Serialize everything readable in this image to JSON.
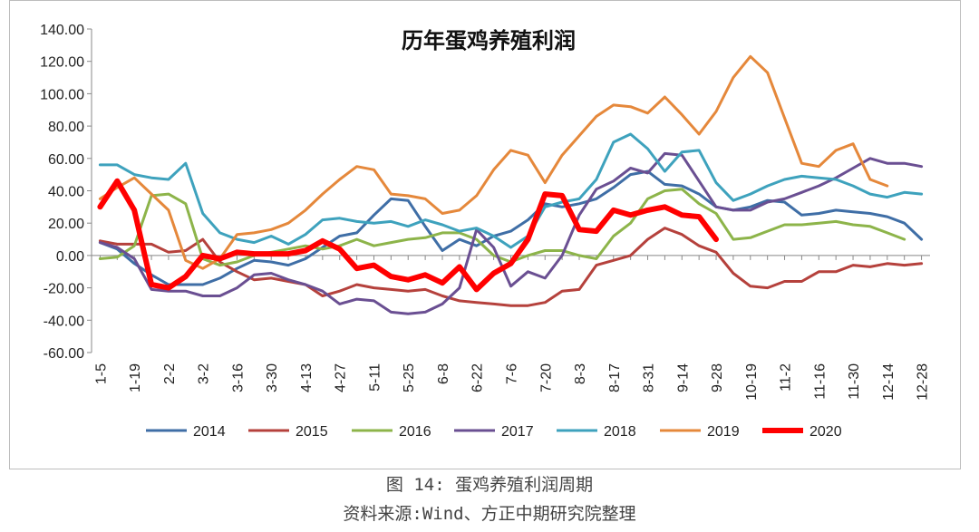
{
  "chart_data": {
    "type": "line",
    "title": "历年蛋鸡养殖利润",
    "ylim": [
      -60,
      140
    ],
    "y_ticks": [
      "140.00",
      "120.00",
      "100.00",
      "80.00",
      "60.00",
      "40.00",
      "20.00",
      "0.00",
      "-20.00",
      "-40.00",
      "-60.00"
    ],
    "y_tick_values": [
      140,
      120,
      100,
      80,
      60,
      40,
      20,
      0,
      -20,
      -40,
      -60
    ],
    "x_tick_labels": [
      "1-5",
      "1-19",
      "2-2",
      "3-2",
      "3-16",
      "3-30",
      "4-13",
      "4-27",
      "5-11",
      "5-25",
      "6-8",
      "6-22",
      "7-6",
      "7-20",
      "8-3",
      "8-17",
      "8-31",
      "9-14",
      "9-28",
      "10-19",
      "11-2",
      "11-16",
      "11-30",
      "12-14",
      "12-28"
    ],
    "x_ticks": [
      1,
      3,
      5,
      7,
      9,
      11,
      13,
      15,
      17,
      19,
      21,
      23,
      25,
      27,
      29,
      31,
      33,
      35,
      37,
      39,
      41,
      43,
      45,
      47,
      49
    ],
    "x_range": [
      0.5,
      49.5
    ],
    "grid": false,
    "legend": "bottom",
    "series": [
      {
        "name": "2014",
        "color": "#3f6ea6",
        "width": 3,
        "values": [
          8,
          4,
          -5,
          -12,
          -18,
          -18,
          -18,
          -14,
          -8,
          -3,
          -4,
          -6,
          -2,
          5,
          12,
          14,
          25,
          35,
          34,
          18,
          3,
          10,
          6,
          12,
          15,
          22,
          32,
          30,
          32,
          35,
          42,
          50,
          52,
          44,
          43,
          38,
          30,
          28,
          30,
          34,
          33,
          25,
          26,
          28,
          27,
          26,
          24,
          20,
          10
        ]
      },
      {
        "name": "2015",
        "color": "#b5413c",
        "width": 3,
        "values": [
          9,
          7,
          7,
          7,
          2,
          3,
          10,
          -4,
          -10,
          -15,
          -14,
          -16,
          -18,
          -25,
          -22,
          -18,
          -20,
          -21,
          -22,
          -21,
          -25,
          -28,
          -29,
          -30,
          -31,
          -31,
          -29,
          -22,
          -21,
          -6,
          -3,
          0,
          10,
          17,
          13,
          6,
          2,
          -11,
          -19,
          -20,
          -16,
          -16,
          -10,
          -10,
          -6,
          -7,
          -5,
          -6,
          -5
        ]
      },
      {
        "name": "2016",
        "color": "#8db44a",
        "width": 3,
        "values": [
          -2,
          -1,
          6,
          37,
          38,
          32,
          -2,
          -6,
          -4,
          0,
          2,
          4,
          6,
          4,
          6,
          10,
          6,
          8,
          10,
          11,
          14,
          14,
          10,
          0,
          -4,
          0,
          3,
          3,
          0,
          -2,
          12,
          20,
          35,
          40,
          41,
          32,
          26,
          10,
          11,
          15,
          19,
          19,
          20,
          21,
          19,
          18,
          14,
          10
        ]
      },
      {
        "name": "2017",
        "color": "#6a4f92",
        "width": 3,
        "values": [
          8,
          5,
          -2,
          -21,
          -22,
          -22,
          -25,
          -25,
          -20,
          -12,
          -11,
          -15,
          -18,
          -22,
          -30,
          -27,
          -28,
          -35,
          -36,
          -35,
          -30,
          -20,
          16,
          5,
          -19,
          -10,
          -14,
          0,
          25,
          41,
          46,
          54,
          51,
          63,
          62,
          46,
          30,
          28,
          28,
          33,
          35,
          39,
          43,
          48,
          54,
          60,
          57,
          57,
          55
        ]
      },
      {
        "name": "2018",
        "color": "#3ea2bd",
        "width": 3,
        "values": [
          56,
          56,
          50,
          48,
          47,
          57,
          26,
          14,
          10,
          8,
          12,
          7,
          13,
          22,
          23,
          21,
          20,
          21,
          18,
          22,
          19,
          15,
          17,
          12,
          5,
          12,
          30,
          33,
          35,
          47,
          70,
          75,
          66,
          52,
          64,
          65,
          45,
          34,
          38,
          43,
          47,
          49,
          48,
          47,
          43,
          38,
          36,
          39,
          38
        ]
      },
      {
        "name": "2019",
        "color": "#e5883b",
        "width": 3,
        "values": [
          35,
          42,
          48,
          38,
          28,
          -3,
          -8,
          -2,
          13,
          14,
          16,
          20,
          28,
          38,
          47,
          55,
          53,
          38,
          37,
          35,
          26,
          28,
          37,
          53,
          65,
          62,
          45,
          62,
          74,
          86,
          93,
          92,
          88,
          98,
          87,
          75,
          89,
          110,
          123,
          113,
          85,
          57,
          55,
          65,
          69,
          47,
          43
        ]
      },
      {
        "name": "2020",
        "color": "#ff0000",
        "width": 6,
        "values": [
          30,
          46,
          28,
          -18,
          -20,
          -13,
          0,
          -2,
          2,
          1,
          1,
          1,
          3,
          9,
          4,
          -8,
          -6,
          -13,
          -15,
          -12,
          -17,
          -7,
          -21,
          -11,
          -5,
          10,
          38,
          37,
          16,
          15,
          28,
          25,
          28,
          30,
          25,
          24,
          10
        ]
      }
    ]
  },
  "captions": {
    "line1": "图 14:  蛋鸡养殖利润周期",
    "line2": "资料来源:Wind、方正中期研究院整理"
  }
}
